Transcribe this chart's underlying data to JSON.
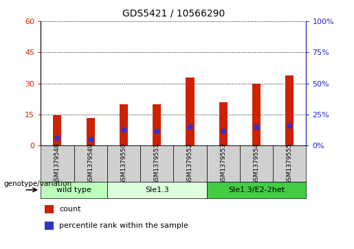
{
  "title": "GDS5421 / 10566290",
  "samples": [
    "GSM1379548",
    "GSM1379549",
    "GSM1379550",
    "GSM1379551",
    "GSM1379552",
    "GSM1379553",
    "GSM1379554",
    "GSM1379555"
  ],
  "counts": [
    14.5,
    13.5,
    20,
    20,
    33,
    21,
    30,
    34
  ],
  "percentile_ranks": [
    6,
    5,
    13,
    12,
    15,
    12,
    15,
    16
  ],
  "ylim_left": [
    0,
    60
  ],
  "ylim_right": [
    0,
    100
  ],
  "yticks_left": [
    0,
    15,
    30,
    45,
    60
  ],
  "yticks_right": [
    0,
    25,
    50,
    75,
    100
  ],
  "ytick_labels_left": [
    "0",
    "15",
    "30",
    "45",
    "60"
  ],
  "ytick_labels_right": [
    "0%",
    "25%",
    "50%",
    "75%",
    "100%"
  ],
  "bar_color": "#cc2200",
  "marker_color": "#3333cc",
  "grid_color": "#000000",
  "genotype_groups": [
    {
      "label": "wild type",
      "start": 0,
      "end": 2,
      "color": "#bbffbb"
    },
    {
      "label": "Sle1.3",
      "start": 2,
      "end": 5,
      "color": "#ddffdd"
    },
    {
      "label": "Sle1.3/E2-2het",
      "start": 5,
      "end": 8,
      "color": "#44cc44"
    }
  ],
  "legend_count_label": "count",
  "legend_pct_label": "percentile rank within the sample",
  "genotype_label": "genotype/variation",
  "tick_color_left": "#cc2200",
  "tick_color_right": "#2222cc",
  "sample_bg_color": "#d0d0d0",
  "plot_bg": "#ffffff",
  "bar_width": 0.25,
  "xlim": [
    -0.5,
    7.5
  ]
}
